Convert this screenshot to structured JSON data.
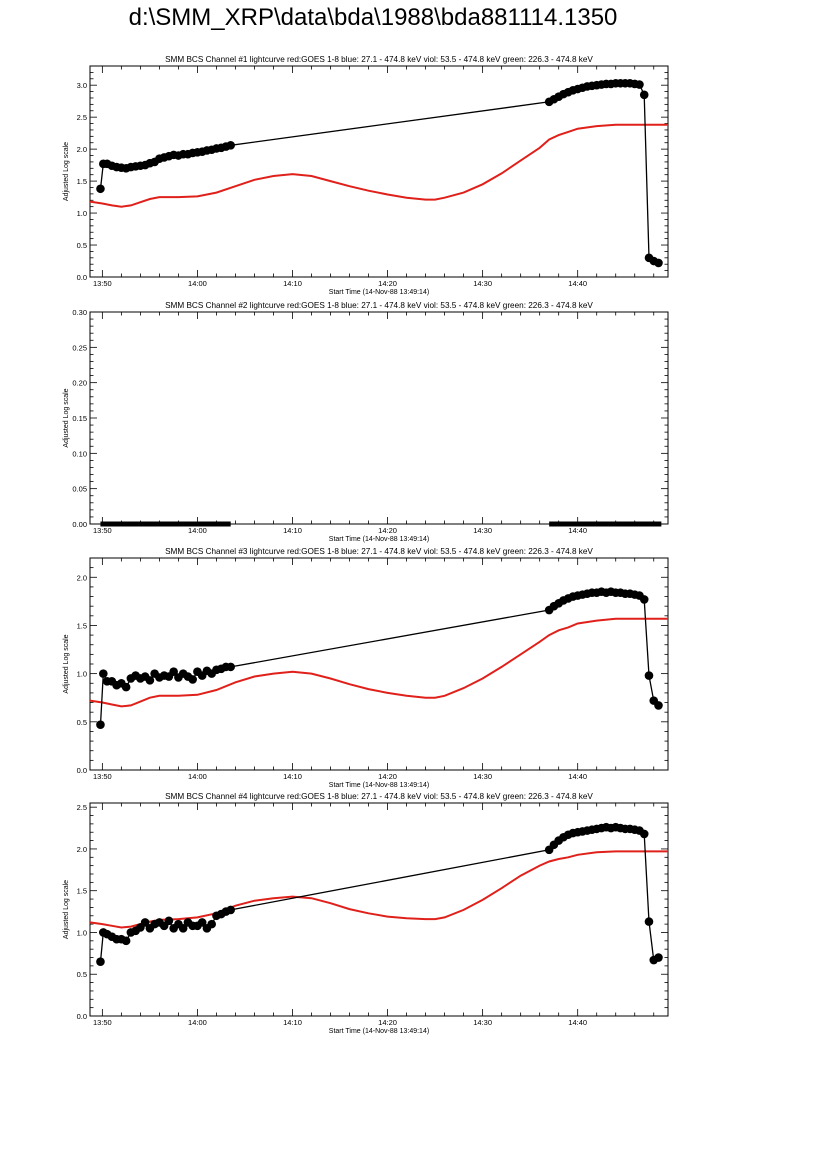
{
  "page": {
    "title": "d:\\SMM_XRP\\data\\bda\\1988\\bda881114.1350"
  },
  "colors": {
    "goes": "#e0201a",
    "bcs": "#000000",
    "axis": "#000000"
  },
  "chart_data": [
    {
      "type": "line",
      "title": "SMM BCS Channel #1 lightcurve  red:GOES 1-8  blue: 27.1 - 474.8 keV  viol: 53.5 - 474.8 keV  green: 226.3 - 474.8 keV",
      "xlabel": "Start Time (14-Nov-88 13:49:14)",
      "ylabel": "Adjusted Log scale",
      "x_ticks": [
        "13:50",
        "14:00",
        "14:10",
        "14:20",
        "14:30",
        "14:40"
      ],
      "x_tick_minutes": [
        50,
        60,
        70,
        80,
        90,
        100
      ],
      "xlim": [
        48.7,
        109.5
      ],
      "y_ticks": [
        "0.0",
        "0.5",
        "1.0",
        "1.5",
        "2.0",
        "2.5",
        "3.0"
      ],
      "ylim": [
        0,
        3.3
      ],
      "series": [
        {
          "color": "#e0201a",
          "marker": "none",
          "x": [
            48.7,
            50,
            51,
            52,
            53,
            54,
            55,
            56,
            58,
            60,
            62,
            64,
            66,
            68,
            70,
            72,
            74,
            76,
            78,
            80,
            82,
            84,
            85,
            86,
            88,
            90,
            92,
            94,
            96,
            97,
            98,
            99,
            100,
            102,
            104,
            106,
            108,
            109.5
          ],
          "y": [
            1.18,
            1.15,
            1.12,
            1.1,
            1.12,
            1.17,
            1.22,
            1.25,
            1.25,
            1.26,
            1.32,
            1.42,
            1.52,
            1.58,
            1.61,
            1.58,
            1.5,
            1.42,
            1.35,
            1.29,
            1.24,
            1.21,
            1.21,
            1.24,
            1.32,
            1.45,
            1.62,
            1.82,
            2.02,
            2.15,
            2.22,
            2.27,
            2.32,
            2.36,
            2.38,
            2.38,
            2.38,
            2.38
          ]
        },
        {
          "color": "#000000",
          "marker": "circle",
          "x": [
            49.8,
            50.1,
            50.5,
            51,
            51.5,
            52,
            52.5,
            53,
            53.5,
            54,
            54.5,
            55,
            55.5,
            56,
            56.5,
            57,
            57.5,
            58,
            58.5,
            59,
            59.5,
            60,
            60.5,
            61,
            61.5,
            62,
            62.5,
            63,
            63.5,
            97,
            97.5,
            98,
            98.5,
            99,
            99.5,
            100,
            100.5,
            101,
            101.5,
            102,
            102.5,
            103,
            103.5,
            104,
            104.5,
            105,
            105.5,
            106,
            106.5,
            107,
            107.5,
            108,
            108.5
          ],
          "y": [
            1.38,
            1.77,
            1.77,
            1.74,
            1.72,
            1.71,
            1.7,
            1.72,
            1.73,
            1.74,
            1.75,
            1.78,
            1.8,
            1.85,
            1.87,
            1.89,
            1.91,
            1.9,
            1.92,
            1.92,
            1.94,
            1.95,
            1.96,
            1.98,
            1.99,
            2.01,
            2.02,
            2.04,
            2.06,
            2.74,
            2.78,
            2.82,
            2.86,
            2.89,
            2.92,
            2.94,
            2.96,
            2.98,
            2.99,
            3.0,
            3.01,
            3.02,
            3.02,
            3.03,
            3.03,
            3.03,
            3.03,
            3.02,
            3.01,
            2.85,
            0.3,
            0.25,
            0.22
          ]
        }
      ]
    },
    {
      "type": "line",
      "title": "SMM BCS Channel #2 lightcurve  red:GOES 1-8  blue: 27.1 - 474.8 keV  viol: 53.5 - 474.8 keV  green: 226.3 - 474.8 keV",
      "xlabel": "Start Time (14-Nov-88 13:49:14)",
      "ylabel": "Adjusted Log scale",
      "x_ticks": [
        "13:50",
        "14:00",
        "14:10",
        "14:20",
        "14:30",
        "14:40"
      ],
      "x_tick_minutes": [
        50,
        60,
        70,
        80,
        90,
        100
      ],
      "xlim": [
        48.7,
        109.5
      ],
      "y_ticks": [
        "0.00",
        "0.05",
        "0.10",
        "0.15",
        "0.20",
        "0.25",
        "0.30"
      ],
      "ylim": [
        0,
        0.3
      ],
      "series": [
        {
          "color": "#000000",
          "marker": "band",
          "x": [
            49.8,
            63.5
          ],
          "y": [
            0,
            0
          ]
        },
        {
          "color": "#000000",
          "marker": "band",
          "x": [
            97,
            108.8
          ],
          "y": [
            0,
            0
          ]
        }
      ]
    },
    {
      "type": "line",
      "title": "SMM BCS Channel #3 lightcurve  red:GOES 1-8  blue: 27.1 - 474.8 keV  viol: 53.5 - 474.8 keV  green: 226.3 - 474.8 keV",
      "xlabel": "Start Time (14-Nov-88 13:49:14)",
      "ylabel": "Adjusted Log scale",
      "x_ticks": [
        "13:50",
        "14:00",
        "14:10",
        "14:20",
        "14:30",
        "14:40"
      ],
      "x_tick_minutes": [
        50,
        60,
        70,
        80,
        90,
        100
      ],
      "xlim": [
        48.7,
        109.5
      ],
      "y_ticks": [
        "0.0",
        "0.5",
        "1.0",
        "1.5",
        "2.0"
      ],
      "ylim": [
        0,
        2.2
      ],
      "series": [
        {
          "color": "#e0201a",
          "marker": "none",
          "x": [
            48.7,
            50,
            51,
            52,
            53,
            54,
            55,
            56,
            58,
            60,
            62,
            64,
            66,
            68,
            70,
            72,
            74,
            76,
            78,
            80,
            82,
            84,
            85,
            86,
            88,
            90,
            92,
            94,
            96,
            97,
            98,
            99,
            100,
            102,
            104,
            106,
            108,
            109.5
          ],
          "y": [
            0.72,
            0.7,
            0.68,
            0.66,
            0.67,
            0.71,
            0.75,
            0.77,
            0.77,
            0.78,
            0.83,
            0.91,
            0.97,
            1.0,
            1.02,
            1.0,
            0.95,
            0.89,
            0.84,
            0.8,
            0.77,
            0.75,
            0.75,
            0.77,
            0.85,
            0.95,
            1.07,
            1.2,
            1.33,
            1.4,
            1.45,
            1.48,
            1.52,
            1.55,
            1.57,
            1.57,
            1.57,
            1.57
          ]
        },
        {
          "color": "#000000",
          "marker": "circle",
          "x": [
            49.8,
            50.1,
            50.5,
            51,
            51.5,
            52,
            52.5,
            53,
            53.5,
            54,
            54.5,
            55,
            55.5,
            56,
            56.5,
            57,
            57.5,
            58,
            58.5,
            59,
            59.5,
            60,
            60.5,
            61,
            61.5,
            62,
            62.5,
            63,
            63.5,
            97,
            97.5,
            98,
            98.5,
            99,
            99.5,
            100,
            100.5,
            101,
            101.5,
            102,
            102.5,
            103,
            103.5,
            104,
            104.5,
            105,
            105.5,
            106,
            106.5,
            107,
            107.5,
            108,
            108.5
          ],
          "y": [
            0.47,
            1.0,
            0.92,
            0.92,
            0.88,
            0.9,
            0.86,
            0.95,
            0.98,
            0.95,
            0.97,
            0.93,
            1.0,
            0.96,
            0.98,
            0.97,
            1.02,
            0.96,
            1.0,
            0.97,
            0.94,
            1.02,
            0.98,
            1.03,
            1.0,
            1.04,
            1.05,
            1.07,
            1.07,
            1.66,
            1.7,
            1.73,
            1.76,
            1.78,
            1.8,
            1.81,
            1.82,
            1.83,
            1.84,
            1.84,
            1.85,
            1.84,
            1.85,
            1.84,
            1.84,
            1.83,
            1.83,
            1.82,
            1.81,
            1.77,
            0.98,
            0.72,
            0.67
          ]
        }
      ]
    },
    {
      "type": "line",
      "title": "SMM BCS Channel #4 lightcurve  red:GOES 1-8  blue: 27.1 - 474.8 keV  viol: 53.5 - 474.8 keV  green: 226.3 - 474.8 keV",
      "xlabel": "Start Time (14-Nov-88 13:49:14)",
      "ylabel": "Adjusted Log scale",
      "x_ticks": [
        "13:50",
        "14:00",
        "14:10",
        "14:20",
        "14:30",
        "14:40"
      ],
      "x_tick_minutes": [
        50,
        60,
        70,
        80,
        90,
        100
      ],
      "xlim": [
        48.7,
        109.5
      ],
      "y_ticks": [
        "0.0",
        "0.5",
        "1.0",
        "1.5",
        "2.0",
        "2.5"
      ],
      "ylim": [
        0,
        2.55
      ],
      "series": [
        {
          "color": "#e0201a",
          "marker": "none",
          "x": [
            48.7,
            50,
            51,
            52,
            53,
            54,
            55,
            56,
            58,
            60,
            62,
            64,
            66,
            68,
            70,
            72,
            74,
            76,
            78,
            80,
            82,
            84,
            85,
            86,
            88,
            90,
            92,
            94,
            96,
            97,
            98,
            99,
            100,
            102,
            104,
            106,
            108,
            109.5
          ],
          "y": [
            1.12,
            1.1,
            1.08,
            1.06,
            1.07,
            1.1,
            1.13,
            1.15,
            1.16,
            1.18,
            1.23,
            1.32,
            1.38,
            1.41,
            1.43,
            1.41,
            1.35,
            1.28,
            1.23,
            1.19,
            1.17,
            1.16,
            1.16,
            1.18,
            1.27,
            1.39,
            1.53,
            1.68,
            1.8,
            1.85,
            1.88,
            1.9,
            1.93,
            1.96,
            1.97,
            1.97,
            1.97,
            1.97
          ]
        },
        {
          "color": "#000000",
          "marker": "circle",
          "x": [
            49.8,
            50.1,
            50.5,
            51,
            51.5,
            52,
            52.5,
            53,
            53.5,
            54,
            54.5,
            55,
            55.5,
            56,
            56.5,
            57,
            57.5,
            58,
            58.5,
            59,
            59.5,
            60,
            60.5,
            61,
            61.5,
            62,
            62.5,
            63,
            63.5,
            97,
            97.5,
            98,
            98.5,
            99,
            99.5,
            100,
            100.5,
            101,
            101.5,
            102,
            102.5,
            103,
            103.5,
            104,
            104.5,
            105,
            105.5,
            106,
            106.5,
            107,
            107.5,
            108,
            108.5
          ],
          "y": [
            0.65,
            1.0,
            0.98,
            0.95,
            0.92,
            0.92,
            0.9,
            1.0,
            1.02,
            1.06,
            1.12,
            1.05,
            1.1,
            1.12,
            1.08,
            1.14,
            1.05,
            1.1,
            1.05,
            1.12,
            1.08,
            1.08,
            1.12,
            1.05,
            1.1,
            1.2,
            1.22,
            1.25,
            1.27,
            1.99,
            2.05,
            2.1,
            2.14,
            2.17,
            2.19,
            2.2,
            2.21,
            2.22,
            2.23,
            2.24,
            2.25,
            2.26,
            2.25,
            2.26,
            2.25,
            2.24,
            2.24,
            2.23,
            2.22,
            2.18,
            1.13,
            0.67,
            0.7
          ]
        }
      ]
    }
  ]
}
